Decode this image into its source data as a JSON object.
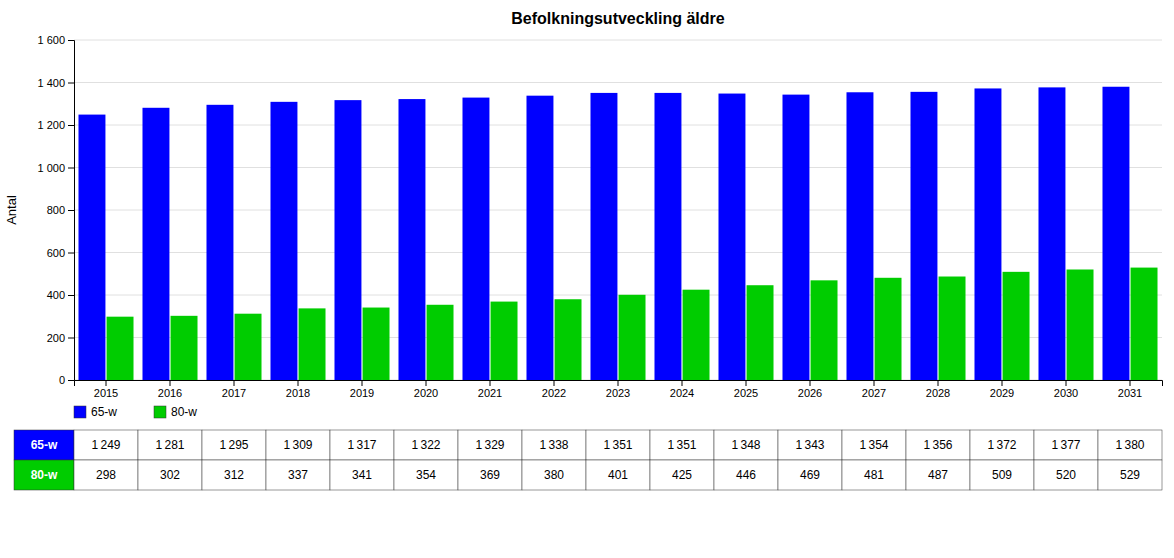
{
  "chart_data": {
    "type": "bar",
    "title": "Befolkningsutveckling äldre",
    "ylabel": "Antal",
    "categories": [
      "2015",
      "2016",
      "2017",
      "2018",
      "2019",
      "2020",
      "2021",
      "2022",
      "2023",
      "2024",
      "2025",
      "2026",
      "2027",
      "2028",
      "2029",
      "2030",
      "2031"
    ],
    "series": [
      {
        "name": "65-w",
        "color": "#0000FF",
        "values": [
          1249,
          1281,
          1295,
          1309,
          1317,
          1322,
          1329,
          1338,
          1351,
          1351,
          1348,
          1343,
          1354,
          1356,
          1372,
          1377,
          1380
        ],
        "value_labels": [
          "1 249",
          "1 281",
          "1 295",
          "1 309",
          "1 317",
          "1 322",
          "1 329",
          "1 338",
          "1 351",
          "1 351",
          "1 348",
          "1 343",
          "1 354",
          "1 356",
          "1 372",
          "1 377",
          "1 380"
        ]
      },
      {
        "name": "80-w",
        "color": "#00CC00",
        "values": [
          298,
          302,
          312,
          337,
          341,
          354,
          369,
          380,
          401,
          425,
          446,
          469,
          481,
          487,
          509,
          520,
          529
        ]
      }
    ],
    "ylim": [
      0,
      1600
    ],
    "yticks": [
      0,
      200,
      400,
      600,
      800,
      {
        "value": 1000,
        "label": "1 000"
      },
      {
        "value": 1200,
        "label": "1 200"
      },
      {
        "value": 1400,
        "label": "1 400"
      },
      {
        "value": 1600,
        "label": "1 600"
      }
    ],
    "grid": true,
    "legend": "bottom"
  }
}
